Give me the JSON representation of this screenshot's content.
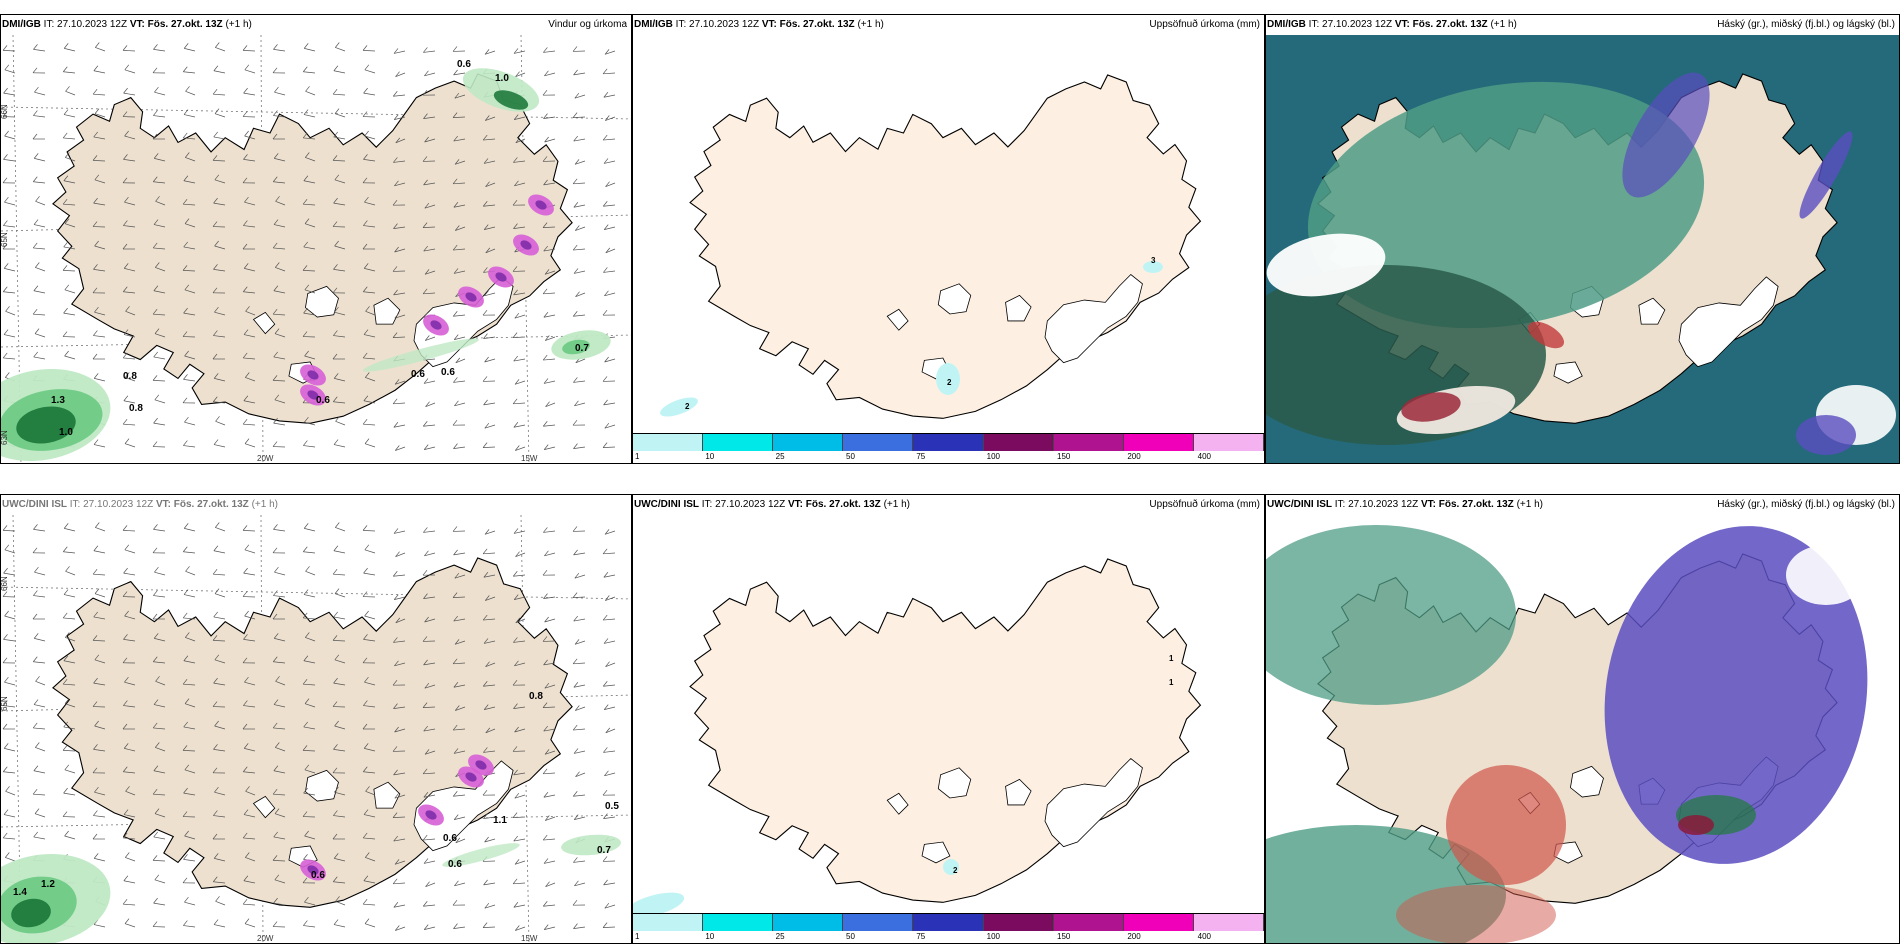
{
  "panels": [
    {
      "id": "top-wind",
      "model": "DMI/IGB",
      "it_label": "IT:",
      "it": "27.10.2023 12Z",
      "vt_label": "VT:",
      "vt": "Fös. 27.okt. 13Z",
      "lead": "(+1 h)",
      "right": "Vindur og úrkoma",
      "precip_labels": [
        "0.6",
        "1.0",
        "0.8",
        "0.8",
        "1.3",
        "1.0",
        "0.6",
        "0.6",
        "0.7",
        "0.6"
      ],
      "lat_labels": [
        "66N",
        "65N",
        "63N"
      ],
      "lon_labels": [
        "20W",
        "15W"
      ]
    },
    {
      "id": "top-accum",
      "model": "DMI/IGB",
      "it_label": "IT:",
      "it": "27.10.2023 12Z",
      "vt_label": "VT:",
      "vt": "Fös. 27.okt. 13Z",
      "lead": "(+1 h)",
      "right": "Uppsöfnuð úrkoma (mm)",
      "point_labels": [
        "2",
        "3",
        "2"
      ],
      "colorbar": [
        "1",
        "10",
        "25",
        "50",
        "75",
        "100",
        "150",
        "200",
        "400"
      ]
    },
    {
      "id": "top-cloud",
      "model": "DMI/IGB",
      "it_label": "IT:",
      "it": "27.10.2023 12Z",
      "vt_label": "VT:",
      "vt": "Fös. 27.okt. 13Z",
      "lead": "(+1 h)",
      "right": "Háský (gr.), miðský (fj.bl.) og lágský (bl.)"
    },
    {
      "id": "bot-wind",
      "model": "UWC/DINI ISL",
      "it_label": "IT:",
      "it": "27.10.2023 12Z",
      "vt_label": "VT:",
      "vt": "Fös. 27.okt. 13Z",
      "lead": "(+1 h)",
      "right": "",
      "precip_labels": [
        "0.8",
        "1.1",
        "0.5",
        "0.6",
        "0.6",
        "0.7",
        "0.6",
        "1.2",
        "1.4"
      ],
      "lat_labels": [
        "66N",
        "65N"
      ],
      "lon_labels": [
        "20W",
        "15W"
      ]
    },
    {
      "id": "bot-accum",
      "model": "UWC/DINI ISL",
      "it_label": "IT:",
      "it": "27.10.2023 12Z",
      "vt_label": "VT:",
      "vt": "Fös. 27.okt. 13Z",
      "lead": "(+1 h)",
      "right": "Uppsöfnuð úrkoma (mm)",
      "point_labels": [
        "1",
        "1",
        "2"
      ],
      "colorbar": [
        "1",
        "10",
        "25",
        "50",
        "75",
        "100",
        "150",
        "200",
        "400"
      ]
    },
    {
      "id": "bot-cloud",
      "model": "UWC/DINI ISL",
      "it_label": "IT:",
      "it": "27.10.2023 12Z",
      "vt_label": "VT:",
      "vt": "Fös. 27.okt. 13Z",
      "lead": "(+1 h)",
      "right": "Háský (gr.), miðský (fj.bl.) og lágský (bl.)"
    }
  ],
  "colors": {
    "land": "#ede0cf",
    "land_accum": "#fdf0e2",
    "glacier": "#ffffff",
    "precip_light": "#bfe9c4",
    "precip_mid": "#6fcb86",
    "precip_dark": "#1f7a3c",
    "precip_very": "#0d3d1a",
    "heavy": "#d65fd6",
    "cloud_low": "#246a7a",
    "cloud_mid": "#5a4dbf",
    "cloud_high": "#c03a3a",
    "cloud_base": "#4f9c86",
    "colorbar": [
      "#c0f4f4",
      "#00e8e8",
      "#00bde8",
      "#3b6fe0",
      "#2a33b8",
      "#7a0b5e",
      "#b01390",
      "#f000b8",
      "#f5b2f0"
    ]
  }
}
